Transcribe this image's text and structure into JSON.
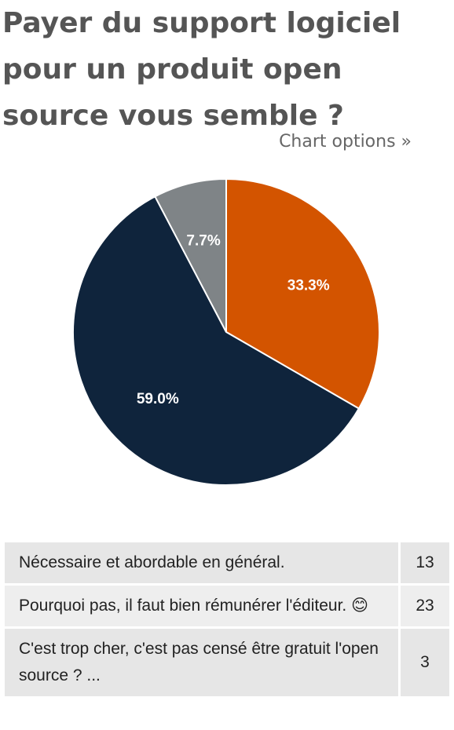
{
  "poll": {
    "title": "Payer du support logiciel pour un produit open source vous semble ?",
    "options_link": "Chart options »"
  },
  "chart_data": {
    "type": "pie",
    "slices": [
      {
        "label": "Nécessaire et abordable en général.",
        "value": 13,
        "percent_label": "33.3%",
        "color": "#d35400"
      },
      {
        "label": "Pourquoi pas, il faut bien rémunérer l'éditeur. 😊",
        "value": 23,
        "percent_label": "59.0%",
        "color": "#0f243c"
      },
      {
        "label": "C'est trop cher, c'est pas censé être gratuit l'open source ? ...",
        "value": 3,
        "percent_label": "7.7%",
        "color": "#7f8487"
      }
    ]
  },
  "results": [
    {
      "answer": "Nécessaire et abordable en général.",
      "count": "13"
    },
    {
      "answer": "Pourquoi pas, il faut bien rémunérer l'éditeur. 😊",
      "count": "23"
    },
    {
      "answer": "C'est trop cher, c'est pas censé être gratuit l'open source ? ...",
      "count": "3"
    }
  ]
}
